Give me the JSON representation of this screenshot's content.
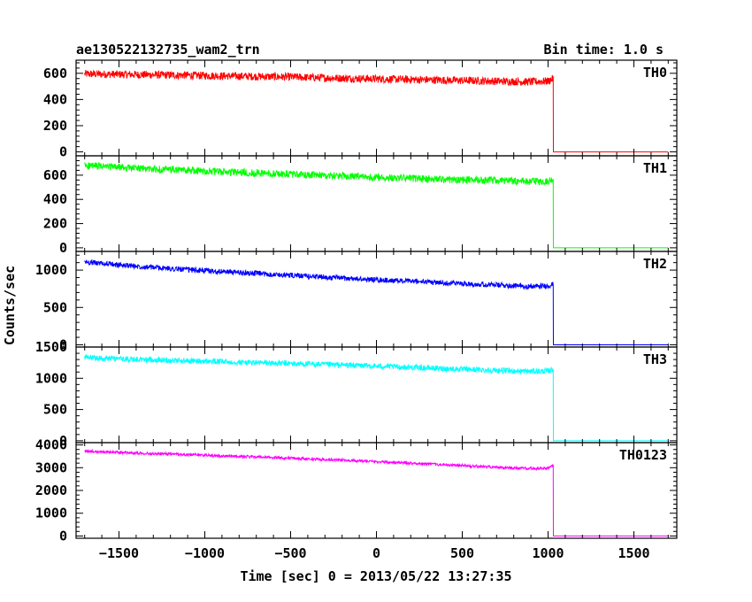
{
  "header": {
    "title": "ae130522132735_wam2_trn",
    "bin_time": "Bin time: 1.0 s"
  },
  "xlabel": "Time [sec] 0 = 2013/05/22 13:27:35",
  "ylabel": "Counts/sec",
  "chart_data": [
    {
      "type": "line",
      "name": "TH0",
      "color": "#ff0000",
      "xlim": [
        -1750,
        1750
      ],
      "ylim": [
        -30,
        700
      ],
      "yticks": [
        0,
        200,
        400,
        600
      ],
      "x": [
        -1700,
        -1500,
        -1300,
        -1100,
        -900,
        -700,
        -500,
        -300,
        -100,
        100,
        300,
        500,
        700,
        900,
        1000,
        1030,
        1031,
        1700
      ],
      "y": [
        595,
        592,
        588,
        585,
        580,
        576,
        572,
        565,
        560,
        555,
        550,
        545,
        540,
        535,
        540,
        560,
        0,
        0
      ],
      "noise": 30
    },
    {
      "type": "line",
      "name": "TH1",
      "color": "#00ff00",
      "xlim": [
        -1750,
        1750
      ],
      "ylim": [
        -30,
        760
      ],
      "yticks": [
        0,
        200,
        400,
        600
      ],
      "x": [
        -1700,
        -1500,
        -1300,
        -1100,
        -900,
        -700,
        -500,
        -300,
        -100,
        100,
        300,
        500,
        700,
        900,
        1000,
        1030,
        1031,
        1700
      ],
      "y": [
        680,
        665,
        650,
        640,
        628,
        618,
        608,
        598,
        588,
        578,
        570,
        562,
        556,
        548,
        550,
        570,
        0,
        0
      ],
      "noise": 30
    },
    {
      "type": "line",
      "name": "TH2",
      "color": "#0000ff",
      "xlim": [
        -1750,
        1750
      ],
      "ylim": [
        -30,
        1250
      ],
      "yticks": [
        0,
        500,
        1000
      ],
      "x": [
        -1700,
        -1500,
        -1300,
        -1100,
        -900,
        -700,
        -500,
        -300,
        -100,
        100,
        300,
        500,
        700,
        900,
        1000,
        1030,
        1031,
        1700
      ],
      "y": [
        1110,
        1070,
        1035,
        1005,
        980,
        955,
        930,
        905,
        880,
        860,
        840,
        820,
        800,
        780,
        790,
        810,
        0,
        0
      ],
      "noise": 35
    },
    {
      "type": "line",
      "name": "TH3",
      "color": "#00ffff",
      "xlim": [
        -1750,
        1750
      ],
      "ylim": [
        -30,
        1500
      ],
      "yticks": [
        0,
        500,
        1000,
        1500
      ],
      "x": [
        -1700,
        -1500,
        -1300,
        -1100,
        -900,
        -700,
        -500,
        -300,
        -100,
        100,
        300,
        500,
        700,
        900,
        1000,
        1030,
        1031,
        1700
      ],
      "y": [
        1330,
        1310,
        1295,
        1280,
        1265,
        1250,
        1235,
        1220,
        1205,
        1185,
        1165,
        1145,
        1125,
        1110,
        1115,
        1150,
        0,
        0
      ],
      "noise": 45
    },
    {
      "type": "line",
      "name": "TH0123",
      "color": "#ff00ff",
      "xlim": [
        -1750,
        1750
      ],
      "ylim": [
        -100,
        4100
      ],
      "yticks": [
        0,
        1000,
        2000,
        3000,
        4000
      ],
      "x": [
        -1700,
        -1500,
        -1300,
        -1100,
        -900,
        -700,
        -500,
        -300,
        -100,
        100,
        300,
        500,
        700,
        900,
        1000,
        1030,
        1031,
        1700
      ],
      "y": [
        3720,
        3670,
        3620,
        3570,
        3520,
        3470,
        3420,
        3360,
        3300,
        3230,
        3160,
        3090,
        3020,
        2960,
        2980,
        3080,
        0,
        0
      ],
      "noise": 60
    }
  ],
  "xticks": [
    -1500,
    -1000,
    -500,
    0,
    500,
    1000,
    1500
  ]
}
